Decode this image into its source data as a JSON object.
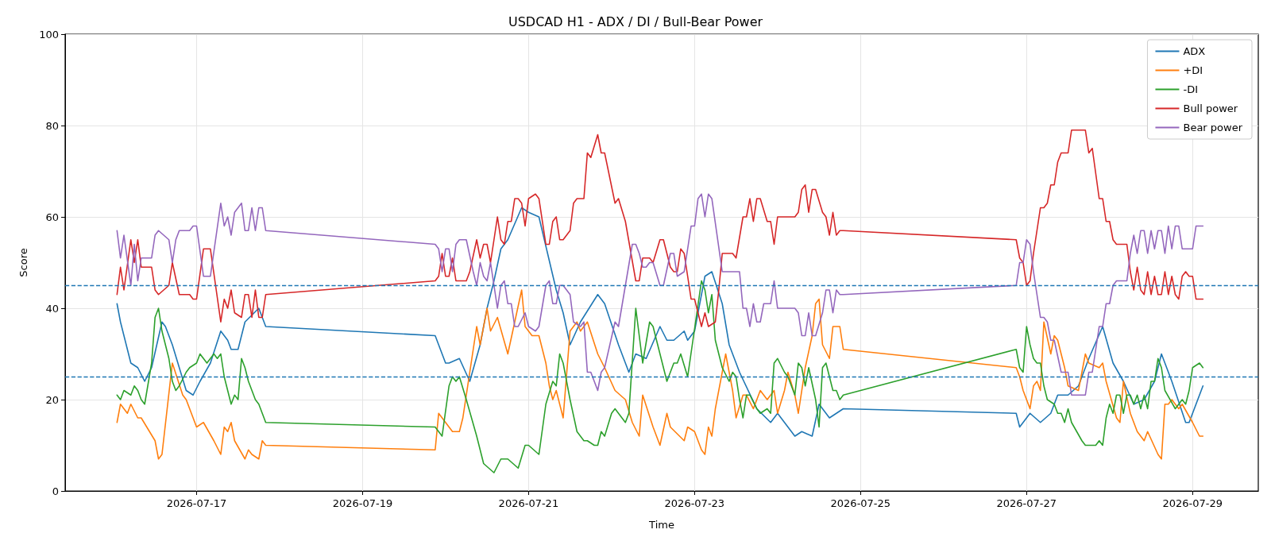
{
  "chart_data": {
    "type": "line",
    "title": "USDCAD H1 - ADX / DI / Bull-Bear Power",
    "xlabel": "Time",
    "ylabel": "Score",
    "xlim": [
      "2026-07-15T10:00",
      "2026-07-29T19:00"
    ],
    "xticks": [
      "2026-07-17",
      "2026-07-19",
      "2026-07-21",
      "2026-07-23",
      "2026-07-25",
      "2026-07-27",
      "2026-07-29"
    ],
    "ylim": [
      0,
      100
    ],
    "yticks": [
      0,
      20,
      40,
      60,
      80,
      100
    ],
    "grid": true,
    "legend": "top right",
    "marker": "none",
    "line_style": "solid",
    "ref_lines": [
      {
        "axis": "y",
        "value": 45,
        "color": "#1f77b4",
        "line_style": "dashed"
      },
      {
        "axis": "y",
        "value": 25,
        "color": "#1f77b4",
        "line_style": "dashed"
      }
    ],
    "series": [
      {
        "name": "ADX",
        "color": "#1f77b4",
        "x": [
          "2026-07-16T01:00",
          "2026-07-16T02:00",
          "2026-07-16T05:00",
          "2026-07-16T07:00",
          "2026-07-16T09:00",
          "2026-07-16T11:00",
          "2026-07-16T14:00",
          "2026-07-16T15:00",
          "2026-07-16T17:00",
          "2026-07-16T21:00",
          "2026-07-16T23:00",
          "2026-07-17T01:00",
          "2026-07-17T04:00",
          "2026-07-17T07:00",
          "2026-07-17T09:00",
          "2026-07-17T10:00",
          "2026-07-17T12:00",
          "2026-07-17T14:00",
          "2026-07-17T18:00",
          "2026-07-17T20:00",
          "2026-07-19T21:00",
          "2026-07-20T00:00",
          "2026-07-20T01:00",
          "2026-07-20T04:00",
          "2026-07-20T07:00",
          "2026-07-20T10:00",
          "2026-07-20T12:00",
          "2026-07-20T14:00",
          "2026-07-20T16:00",
          "2026-07-20T18:00",
          "2026-07-20T22:00",
          "2026-07-21T00:00",
          "2026-07-21T03:00",
          "2026-07-21T08:00",
          "2026-07-21T10:00",
          "2026-07-21T12:00",
          "2026-07-21T15:00",
          "2026-07-21T20:00",
          "2026-07-21T22:00",
          "2026-07-22T02:00",
          "2026-07-22T05:00",
          "2026-07-22T07:00",
          "2026-07-22T10:00",
          "2026-07-22T14:00",
          "2026-07-22T16:00",
          "2026-07-22T18:00",
          "2026-07-22T21:00",
          "2026-07-22T22:00",
          "2026-07-23T00:00",
          "2026-07-23T03:00",
          "2026-07-23T05:00",
          "2026-07-23T08:00",
          "2026-07-23T10:00",
          "2026-07-23T13:00",
          "2026-07-23T18:00",
          "2026-07-23T22:00",
          "2026-07-24T00:00",
          "2026-07-24T05:00",
          "2026-07-24T07:00",
          "2026-07-24T10:00",
          "2026-07-24T12:00",
          "2026-07-24T15:00",
          "2026-07-24T19:00",
          "2026-07-26T21:00",
          "2026-07-26T22:00",
          "2026-07-27T01:00",
          "2026-07-27T04:00",
          "2026-07-27T07:00",
          "2026-07-27T09:00",
          "2026-07-27T12:00",
          "2026-07-27T15:00",
          "2026-07-27T18:00",
          "2026-07-27T22:00",
          "2026-07-28T01:00",
          "2026-07-28T04:00",
          "2026-07-28T07:00",
          "2026-07-28T10:00",
          "2026-07-28T13:00",
          "2026-07-28T15:00",
          "2026-07-28T18:00",
          "2026-07-28T22:00",
          "2026-07-28T23:00",
          "2026-07-29T03:00"
        ],
        "values": [
          41,
          37,
          28,
          27,
          24,
          27,
          37,
          36,
          32,
          22,
          21,
          24,
          28,
          35,
          33,
          31,
          31,
          37,
          40,
          36,
          34,
          28,
          28,
          29,
          24,
          32,
          40,
          46,
          53,
          55,
          62,
          61,
          60,
          44,
          39,
          32,
          37,
          43,
          41,
          32,
          26,
          30,
          29,
          36,
          33,
          33,
          35,
          33,
          35,
          47,
          48,
          41,
          32,
          26,
          18,
          15,
          17,
          12,
          13,
          12,
          19,
          16,
          18,
          17,
          14,
          17,
          15,
          17,
          21,
          21,
          23,
          29,
          36,
          28,
          24,
          19,
          20,
          24,
          30,
          24,
          15,
          15,
          23
        ]
      },
      {
        "name": "+DI",
        "color": "#ff7f0e",
        "x": [
          "2026-07-16T01:00",
          "2026-07-16T02:00",
          "2026-07-16T04:00",
          "2026-07-16T05:00",
          "2026-07-16T07:00",
          "2026-07-16T08:00",
          "2026-07-16T12:00",
          "2026-07-16T13:00",
          "2026-07-16T14:00",
          "2026-07-16T17:00",
          "2026-07-16T20:00",
          "2026-07-16T21:00",
          "2026-07-17T00:00",
          "2026-07-17T02:00",
          "2026-07-17T05:00",
          "2026-07-17T07:00",
          "2026-07-17T08:00",
          "2026-07-17T09:00",
          "2026-07-17T10:00",
          "2026-07-17T11:00",
          "2026-07-17T14:00",
          "2026-07-17T15:00",
          "2026-07-17T16:00",
          "2026-07-17T18:00",
          "2026-07-17T19:00",
          "2026-07-17T20:00",
          "2026-07-19T21:00",
          "2026-07-19T22:00",
          "2026-07-19T23:00",
          "2026-07-20T02:00",
          "2026-07-20T04:00",
          "2026-07-20T05:00",
          "2026-07-20T09:00",
          "2026-07-20T10:00",
          "2026-07-20T12:00",
          "2026-07-20T13:00",
          "2026-07-20T15:00",
          "2026-07-20T18:00",
          "2026-07-20T20:00",
          "2026-07-20T22:00",
          "2026-07-20T23:00",
          "2026-07-21T01:00",
          "2026-07-21T03:00",
          "2026-07-21T05:00",
          "2026-07-21T06:00",
          "2026-07-21T07:00",
          "2026-07-21T08:00",
          "2026-07-21T10:00",
          "2026-07-21T12:00",
          "2026-07-21T14:00",
          "2026-07-21T15:00",
          "2026-07-21T17:00",
          "2026-07-21T20:00",
          "2026-07-21T22:00",
          "2026-07-22T01:00",
          "2026-07-22T04:00",
          "2026-07-22T06:00",
          "2026-07-22T08:00",
          "2026-07-22T09:00",
          "2026-07-22T12:00",
          "2026-07-22T14:00",
          "2026-07-22T16:00",
          "2026-07-22T17:00",
          "2026-07-22T21:00",
          "2026-07-22T22:00",
          "2026-07-23T00:00",
          "2026-07-23T02:00",
          "2026-07-23T03:00",
          "2026-07-23T04:00",
          "2026-07-23T05:00",
          "2026-07-23T06:00",
          "2026-07-23T09:00",
          "2026-07-23T11:00",
          "2026-07-23T12:00",
          "2026-07-23T14:00",
          "2026-07-23T15:00",
          "2026-07-23T17:00",
          "2026-07-23T19:00",
          "2026-07-23T21:00",
          "2026-07-23T23:00",
          "2026-07-24T00:00",
          "2026-07-24T02:00",
          "2026-07-24T03:00",
          "2026-07-24T05:00",
          "2026-07-24T06:00",
          "2026-07-24T08:00",
          "2026-07-24T10:00",
          "2026-07-24T11:00",
          "2026-07-24T12:00",
          "2026-07-24T13:00",
          "2026-07-24T15:00",
          "2026-07-24T16:00",
          "2026-07-24T18:00",
          "2026-07-24T19:00",
          "2026-07-26T21:00",
          "2026-07-26T22:00",
          "2026-07-26T23:00",
          "2026-07-27T01:00",
          "2026-07-27T02:00",
          "2026-07-27T03:00",
          "2026-07-27T04:00",
          "2026-07-27T05:00",
          "2026-07-27T07:00",
          "2026-07-27T08:00",
          "2026-07-27T09:00",
          "2026-07-27T10:00",
          "2026-07-27T11:00",
          "2026-07-27T12:00",
          "2026-07-27T15:00",
          "2026-07-27T17:00",
          "2026-07-27T18:00",
          "2026-07-27T21:00",
          "2026-07-27T22:00",
          "2026-07-27T23:00",
          "2026-07-28T02:00",
          "2026-07-28T03:00",
          "2026-07-28T04:00",
          "2026-07-28T06:00",
          "2026-07-28T08:00",
          "2026-07-28T10:00",
          "2026-07-28T11:00",
          "2026-07-28T14:00",
          "2026-07-28T15:00",
          "2026-07-28T16:00",
          "2026-07-28T17:00",
          "2026-07-28T18:00",
          "2026-07-28T20:00",
          "2026-07-28T21:00",
          "2026-07-29T00:00",
          "2026-07-29T02:00",
          "2026-07-29T03:00"
        ],
        "values": [
          15,
          19,
          17,
          19,
          16,
          16,
          11,
          7,
          8,
          28,
          21,
          20,
          14,
          15,
          11,
          8,
          14,
          13,
          15,
          11,
          7,
          9,
          8,
          7,
          11,
          10,
          9,
          17,
          16,
          13,
          13,
          16,
          36,
          32,
          40,
          35,
          38,
          30,
          37,
          44,
          36,
          34,
          34,
          28,
          23,
          20,
          22,
          16,
          35,
          37,
          35,
          37,
          30,
          27,
          22,
          20,
          15,
          12,
          21,
          14,
          10,
          17,
          14,
          11,
          14,
          13,
          9,
          8,
          14,
          12,
          18,
          30,
          22,
          16,
          21,
          21,
          18,
          22,
          20,
          22,
          17,
          22,
          26,
          21,
          17,
          27,
          34,
          41,
          42,
          32,
          29,
          36,
          36,
          31,
          27,
          25,
          22,
          18,
          23,
          24,
          22,
          37,
          30,
          34,
          33,
          30,
          27,
          23,
          22,
          30,
          28,
          27,
          28,
          24,
          16,
          15,
          24,
          17,
          13,
          11,
          13,
          8,
          7,
          19,
          19,
          20,
          18,
          19,
          15,
          12,
          12
        ]
      },
      {
        "name": "-DI",
        "color": "#2ca02c",
        "x": [
          "2026-07-16T01:00",
          "2026-07-16T02:00",
          "2026-07-16T03:00",
          "2026-07-16T05:00",
          "2026-07-16T06:00",
          "2026-07-16T07:00",
          "2026-07-16T08:00",
          "2026-07-16T09:00",
          "2026-07-16T11:00",
          "2026-07-16T12:00",
          "2026-07-16T13:00",
          "2026-07-16T14:00",
          "2026-07-16T16:00",
          "2026-07-16T17:00",
          "2026-07-16T18:00",
          "2026-07-16T19:00",
          "2026-07-16T21:00",
          "2026-07-16T22:00",
          "2026-07-17T00:00",
          "2026-07-17T01:00",
          "2026-07-17T03:00",
          "2026-07-17T05:00",
          "2026-07-17T06:00",
          "2026-07-17T07:00",
          "2026-07-17T08:00",
          "2026-07-17T10:00",
          "2026-07-17T11:00",
          "2026-07-17T12:00",
          "2026-07-17T13:00",
          "2026-07-17T14:00",
          "2026-07-17T15:00",
          "2026-07-17T17:00",
          "2026-07-17T18:00",
          "2026-07-17T19:00",
          "2026-07-17T20:00",
          "2026-07-19T21:00",
          "2026-07-19T23:00",
          "2026-07-20T01:00",
          "2026-07-20T02:00",
          "2026-07-20T03:00",
          "2026-07-20T04:00",
          "2026-07-20T06:00",
          "2026-07-20T09:00",
          "2026-07-20T11:00",
          "2026-07-20T14:00",
          "2026-07-20T16:00",
          "2026-07-20T18:00",
          "2026-07-20T21:00",
          "2026-07-20T23:00",
          "2026-07-21T00:00",
          "2026-07-21T03:00",
          "2026-07-21T05:00",
          "2026-07-21T07:00",
          "2026-07-21T08:00",
          "2026-07-21T09:00",
          "2026-07-21T10:00",
          "2026-07-21T12:00",
          "2026-07-21T14:00",
          "2026-07-21T16:00",
          "2026-07-21T17:00",
          "2026-07-21T19:00",
          "2026-07-21T20:00",
          "2026-07-21T21:00",
          "2026-07-21T22:00",
          "2026-07-22T00:00",
          "2026-07-22T01:00",
          "2026-07-22T04:00",
          "2026-07-22T05:00",
          "2026-07-22T07:00",
          "2026-07-22T09:00",
          "2026-07-22T11:00",
          "2026-07-22T12:00",
          "2026-07-22T14:00",
          "2026-07-22T16:00",
          "2026-07-22T18:00",
          "2026-07-22T19:00",
          "2026-07-22T20:00",
          "2026-07-22T22:00",
          "2026-07-23T02:00",
          "2026-07-23T03:00",
          "2026-07-23T04:00",
          "2026-07-23T05:00",
          "2026-07-23T06:00",
          "2026-07-23T08:00",
          "2026-07-23T10:00",
          "2026-07-23T11:00",
          "2026-07-23T12:00",
          "2026-07-23T13:00",
          "2026-07-23T14:00",
          "2026-07-23T15:00",
          "2026-07-23T16:00",
          "2026-07-23T18:00",
          "2026-07-23T19:00",
          "2026-07-23T21:00",
          "2026-07-23T22:00",
          "2026-07-23T23:00",
          "2026-07-24T00:00",
          "2026-07-24T02:00",
          "2026-07-24T03:00",
          "2026-07-24T05:00",
          "2026-07-24T06:00",
          "2026-07-24T07:00",
          "2026-07-24T08:00",
          "2026-07-24T09:00",
          "2026-07-24T11:00",
          "2026-07-24T12:00",
          "2026-07-24T13:00",
          "2026-07-24T14:00",
          "2026-07-24T16:00",
          "2026-07-24T17:00",
          "2026-07-24T18:00",
          "2026-07-24T19:00",
          "2026-07-26T21:00",
          "2026-07-26T22:00",
          "2026-07-26T23:00",
          "2026-07-27T00:00",
          "2026-07-27T01:00",
          "2026-07-27T02:00",
          "2026-07-27T03:00",
          "2026-07-27T04:00",
          "2026-07-27T05:00",
          "2026-07-27T06:00",
          "2026-07-27T08:00",
          "2026-07-27T09:00",
          "2026-07-27T10:00",
          "2026-07-27T11:00",
          "2026-07-27T12:00",
          "2026-07-27T13:00",
          "2026-07-27T16:00",
          "2026-07-27T17:00",
          "2026-07-27T18:00",
          "2026-07-27T20:00",
          "2026-07-27T21:00",
          "2026-07-27T22:00",
          "2026-07-27T23:00",
          "2026-07-28T00:00",
          "2026-07-28T01:00",
          "2026-07-28T02:00",
          "2026-07-28T03:00",
          "2026-07-28T04:00",
          "2026-07-28T05:00",
          "2026-07-28T06:00",
          "2026-07-28T07:00",
          "2026-07-28T08:00",
          "2026-07-28T09:00",
          "2026-07-28T10:00",
          "2026-07-28T11:00",
          "2026-07-28T12:00",
          "2026-07-28T13:00",
          "2026-07-28T14:00",
          "2026-07-28T15:00",
          "2026-07-28T16:00",
          "2026-07-28T19:00",
          "2026-07-28T21:00",
          "2026-07-28T22:00",
          "2026-07-28T23:00",
          "2026-07-29T00:00",
          "2026-07-29T02:00",
          "2026-07-29T03:00"
        ],
        "values": [
          21,
          20,
          22,
          21,
          23,
          22,
          20,
          19,
          28,
          38,
          40,
          35,
          29,
          24,
          22,
          23,
          26,
          27,
          28,
          30,
          28,
          30,
          29,
          30,
          25,
          19,
          21,
          20,
          29,
          27,
          24,
          20,
          19,
          17,
          15,
          14,
          12,
          23,
          25,
          24,
          25,
          20,
          12,
          6,
          4,
          7,
          7,
          5,
          10,
          10,
          8,
          19,
          24,
          23,
          30,
          28,
          20,
          13,
          11,
          11,
          10,
          10,
          13,
          12,
          17,
          18,
          15,
          17,
          40,
          28,
          37,
          36,
          30,
          24,
          28,
          28,
          30,
          25,
          46,
          44,
          39,
          43,
          33,
          27,
          24,
          26,
          25,
          20,
          16,
          21,
          21,
          18,
          17,
          18,
          17,
          28,
          29,
          26,
          25,
          21,
          28,
          27,
          23,
          27,
          20,
          14,
          27,
          28,
          22,
          22,
          20,
          21,
          31,
          27,
          26,
          36,
          32,
          29,
          28,
          28,
          23,
          20,
          19,
          17,
          17,
          15,
          18,
          15,
          11,
          10,
          10,
          10,
          11,
          10,
          16,
          19,
          17,
          21,
          21,
          17,
          21,
          21,
          19,
          21,
          18,
          21,
          18,
          24,
          24,
          29,
          27,
          22,
          18,
          20,
          19,
          22,
          27,
          28,
          27
        ]
      },
      {
        "name": "Bull power",
        "color": "#d62728",
        "x": [
          "2026-07-16T01:00",
          "2026-07-16T02:00",
          "2026-07-16T03:00",
          "2026-07-16T05:00",
          "2026-07-16T06:00",
          "2026-07-16T07:00",
          "2026-07-16T08:00",
          "2026-07-16T11:00",
          "2026-07-16T12:00",
          "2026-07-16T13:00",
          "2026-07-16T16:00",
          "2026-07-16T17:00",
          "2026-07-16T19:00",
          "2026-07-16T22:00",
          "2026-07-16T23:00",
          "2026-07-17T00:00",
          "2026-07-17T02:00",
          "2026-07-17T04:00",
          "2026-07-17T07:00",
          "2026-07-17T08:00",
          "2026-07-17T09:00",
          "2026-07-17T10:00",
          "2026-07-17T11:00",
          "2026-07-17T13:00",
          "2026-07-17T14:00",
          "2026-07-17T15:00",
          "2026-07-17T16:00",
          "2026-07-17T17:00",
          "2026-07-17T18:00",
          "2026-07-17T19:00",
          "2026-07-17T20:00",
          "2026-07-19T21:00",
          "2026-07-19T22:00",
          "2026-07-19T23:00",
          "2026-07-20T00:00",
          "2026-07-20T01:00",
          "2026-07-20T02:00",
          "2026-07-20T03:00",
          "2026-07-20T04:00",
          "2026-07-20T06:00",
          "2026-07-20T07:00",
          "2026-07-20T09:00",
          "2026-07-20T10:00",
          "2026-07-20T11:00",
          "2026-07-20T12:00",
          "2026-07-20T13:00",
          "2026-07-20T15:00",
          "2026-07-20T16:00",
          "2026-07-20T17:00",
          "2026-07-20T18:00",
          "2026-07-20T19:00",
          "2026-07-20T20:00",
          "2026-07-20T21:00",
          "2026-07-20T22:00",
          "2026-07-20T23:00",
          "2026-07-21T00:00",
          "2026-07-21T02:00",
          "2026-07-21T03:00",
          "2026-07-21T05:00",
          "2026-07-21T06:00",
          "2026-07-21T07:00",
          "2026-07-21T08:00",
          "2026-07-21T09:00",
          "2026-07-21T10:00",
          "2026-07-21T12:00",
          "2026-07-21T13:00",
          "2026-07-21T14:00",
          "2026-07-21T16:00",
          "2026-07-21T17:00",
          "2026-07-21T18:00",
          "2026-07-21T20:00",
          "2026-07-21T21:00",
          "2026-07-21T22:00",
          "2026-07-22T01:00",
          "2026-07-22T02:00",
          "2026-07-22T04:00",
          "2026-07-22T07:00",
          "2026-07-22T08:00",
          "2026-07-22T09:00",
          "2026-07-22T11:00",
          "2026-07-22T12:00",
          "2026-07-22T14:00",
          "2026-07-22T15:00",
          "2026-07-22T17:00",
          "2026-07-22T18:00",
          "2026-07-22T19:00",
          "2026-07-22T20:00",
          "2026-07-22T21:00",
          "2026-07-22T22:00",
          "2026-07-22T23:00",
          "2026-07-23T00:00",
          "2026-07-23T02:00",
          "2026-07-23T03:00",
          "2026-07-23T04:00",
          "2026-07-23T06:00",
          "2026-07-23T07:00",
          "2026-07-23T08:00",
          "2026-07-23T11:00",
          "2026-07-23T12:00",
          "2026-07-23T14:00",
          "2026-07-23T15:00",
          "2026-07-23T16:00",
          "2026-07-23T17:00",
          "2026-07-23T18:00",
          "2026-07-23T19:00",
          "2026-07-23T21:00",
          "2026-07-23T22:00",
          "2026-07-23T23:00",
          "2026-07-24T00:00",
          "2026-07-24T01:00",
          "2026-07-24T05:00",
          "2026-07-24T06:00",
          "2026-07-24T07:00",
          "2026-07-24T08:00",
          "2026-07-24T09:00",
          "2026-07-24T10:00",
          "2026-07-24T11:00",
          "2026-07-24T13:00",
          "2026-07-24T14:00",
          "2026-07-24T15:00",
          "2026-07-24T16:00",
          "2026-07-24T17:00",
          "2026-07-24T18:00",
          "2026-07-24T19:00",
          "2026-07-26T21:00",
          "2026-07-26T22:00",
          "2026-07-26T23:00",
          "2026-07-27T00:00",
          "2026-07-27T01:00",
          "2026-07-27T02:00",
          "2026-07-27T04:00",
          "2026-07-27T05:00",
          "2026-07-27T06:00",
          "2026-07-27T07:00",
          "2026-07-27T08:00",
          "2026-07-27T09:00",
          "2026-07-27T10:00",
          "2026-07-27T12:00",
          "2026-07-27T13:00",
          "2026-07-27T16:00",
          "2026-07-27T17:00",
          "2026-07-27T18:00",
          "2026-07-27T19:00",
          "2026-07-27T21:00",
          "2026-07-27T22:00",
          "2026-07-27T23:00",
          "2026-07-28T00:00",
          "2026-07-28T01:00",
          "2026-07-28T02:00",
          "2026-07-28T05:00",
          "2026-07-28T06:00",
          "2026-07-28T07:00",
          "2026-07-28T08:00",
          "2026-07-28T09:00",
          "2026-07-28T10:00",
          "2026-07-28T11:00",
          "2026-07-28T12:00",
          "2026-07-28T13:00",
          "2026-07-28T14:00",
          "2026-07-28T15:00",
          "2026-07-28T16:00",
          "2026-07-28T17:00",
          "2026-07-28T18:00",
          "2026-07-28T19:00",
          "2026-07-28T20:00",
          "2026-07-28T21:00",
          "2026-07-28T22:00",
          "2026-07-28T23:00",
          "2026-07-29T00:00",
          "2026-07-29T01:00",
          "2026-07-29T03:00"
        ],
        "values": [
          43,
          49,
          44,
          55,
          50,
          55,
          49,
          49,
          44,
          43,
          45,
          50,
          43,
          43,
          42,
          42,
          53,
          53,
          37,
          42,
          40,
          44,
          39,
          38,
          43,
          43,
          38,
          44,
          38,
          38,
          43,
          46,
          47,
          52,
          47,
          47,
          51,
          46,
          46,
          46,
          48,
          55,
          51,
          54,
          54,
          50,
          60,
          55,
          54,
          59,
          59,
          64,
          64,
          63,
          58,
          64,
          65,
          64,
          54,
          54,
          59,
          60,
          55,
          55,
          57,
          63,
          64,
          64,
          74,
          73,
          78,
          74,
          74,
          63,
          64,
          59,
          46,
          46,
          51,
          51,
          50,
          55,
          55,
          49,
          48,
          48,
          53,
          52,
          47,
          42,
          42,
          36,
          39,
          36,
          37,
          44,
          52,
          52,
          51,
          60,
          60,
          64,
          59,
          64,
          64,
          59,
          59,
          54,
          60,
          60,
          60,
          61,
          66,
          67,
          61,
          66,
          66,
          61,
          60,
          56,
          61,
          56,
          57,
          57,
          55,
          51,
          50,
          45,
          46,
          52,
          62,
          62,
          63,
          67,
          67,
          72,
          74,
          74,
          79,
          79,
          79,
          74,
          75,
          64,
          64,
          59,
          59,
          55,
          54,
          54,
          48,
          44,
          49,
          44,
          43,
          48,
          43,
          47,
          43,
          43,
          48,
          43,
          47,
          43,
          42,
          47,
          48,
          47,
          47,
          42,
          42
        ]
      },
      {
        "name": "Bear power",
        "color": "#9467bd",
        "x": [
          "2026-07-16T01:00",
          "2026-07-16T02:00",
          "2026-07-16T03:00",
          "2026-07-16T05:00",
          "2026-07-16T06:00",
          "2026-07-16T07:00",
          "2026-07-16T08:00",
          "2026-07-16T11:00",
          "2026-07-16T12:00",
          "2026-07-16T13:00",
          "2026-07-16T16:00",
          "2026-07-16T17:00",
          "2026-07-16T18:00",
          "2026-07-16T19:00",
          "2026-07-16T22:00",
          "2026-07-16T23:00",
          "2026-07-17T00:00",
          "2026-07-17T02:00",
          "2026-07-17T04:00",
          "2026-07-17T07:00",
          "2026-07-17T08:00",
          "2026-07-17T09:00",
          "2026-07-17T10:00",
          "2026-07-17T11:00",
          "2026-07-17T13:00",
          "2026-07-17T14:00",
          "2026-07-17T15:00",
          "2026-07-17T16:00",
          "2026-07-17T17:00",
          "2026-07-17T18:00",
          "2026-07-17T19:00",
          "2026-07-17T20:00",
          "2026-07-19T21:00",
          "2026-07-19T22:00",
          "2026-07-19T23:00",
          "2026-07-20T00:00",
          "2026-07-20T01:00",
          "2026-07-20T02:00",
          "2026-07-20T03:00",
          "2026-07-20T04:00",
          "2026-07-20T06:00",
          "2026-07-20T08:00",
          "2026-07-20T09:00",
          "2026-07-20T10:00",
          "2026-07-20T11:00",
          "2026-07-20T12:00",
          "2026-07-20T13:00",
          "2026-07-20T15:00",
          "2026-07-20T16:00",
          "2026-07-20T17:00",
          "2026-07-20T18:00",
          "2026-07-20T19:00",
          "2026-07-20T20:00",
          "2026-07-20T21:00",
          "2026-07-20T23:00",
          "2026-07-21T00:00",
          "2026-07-21T02:00",
          "2026-07-21T03:00",
          "2026-07-21T05:00",
          "2026-07-21T06:00",
          "2026-07-21T07:00",
          "2026-07-21T08:00",
          "2026-07-21T09:00",
          "2026-07-21T10:00",
          "2026-07-21T12:00",
          "2026-07-21T13:00",
          "2026-07-21T15:00",
          "2026-07-21T16:00",
          "2026-07-21T17:00",
          "2026-07-21T18:00",
          "2026-07-21T20:00",
          "2026-07-21T21:00",
          "2026-07-21T22:00",
          "2026-07-22T01:00",
          "2026-07-22T02:00",
          "2026-07-22T06:00",
          "2026-07-22T07:00",
          "2026-07-22T08:00",
          "2026-07-22T09:00",
          "2026-07-22T10:00",
          "2026-07-22T11:00",
          "2026-07-22T12:00",
          "2026-07-22T14:00",
          "2026-07-22T15:00",
          "2026-07-22T17:00",
          "2026-07-22T18:00",
          "2026-07-22T19:00",
          "2026-07-22T21:00",
          "2026-07-22T23:00",
          "2026-07-23T00:00",
          "2026-07-23T01:00",
          "2026-07-23T02:00",
          "2026-07-23T03:00",
          "2026-07-23T04:00",
          "2026-07-23T05:00",
          "2026-07-23T08:00",
          "2026-07-23T12:00",
          "2026-07-23T13:00",
          "2026-07-23T14:00",
          "2026-07-23T15:00",
          "2026-07-23T16:00",
          "2026-07-23T17:00",
          "2026-07-23T18:00",
          "2026-07-23T19:00",
          "2026-07-23T20:00",
          "2026-07-23T22:00",
          "2026-07-23T23:00",
          "2026-07-24T00:00",
          "2026-07-24T02:00",
          "2026-07-24T05:00",
          "2026-07-24T06:00",
          "2026-07-24T07:00",
          "2026-07-24T08:00",
          "2026-07-24T09:00",
          "2026-07-24T10:00",
          "2026-07-24T11:00",
          "2026-07-24T13:00",
          "2026-07-24T14:00",
          "2026-07-24T15:00",
          "2026-07-24T16:00",
          "2026-07-24T17:00",
          "2026-07-24T18:00",
          "2026-07-24T19:00",
          "2026-07-26T21:00",
          "2026-07-26T22:00",
          "2026-07-26T23:00",
          "2026-07-27T00:00",
          "2026-07-27T01:00",
          "2026-07-27T02:00",
          "2026-07-27T04:00",
          "2026-07-27T05:00",
          "2026-07-27T06:00",
          "2026-07-27T07:00",
          "2026-07-27T08:00",
          "2026-07-27T10:00",
          "2026-07-27T12:00",
          "2026-07-27T13:00",
          "2026-07-27T16:00",
          "2026-07-27T17:00",
          "2026-07-27T18:00",
          "2026-07-27T19:00",
          "2026-07-27T21:00",
          "2026-07-27T22:00",
          "2026-07-27T23:00",
          "2026-07-28T00:00",
          "2026-07-28T01:00",
          "2026-07-28T02:00",
          "2026-07-28T05:00",
          "2026-07-28T06:00",
          "2026-07-28T07:00",
          "2026-07-28T08:00",
          "2026-07-28T09:00",
          "2026-07-28T10:00",
          "2026-07-28T11:00",
          "2026-07-28T12:00",
          "2026-07-28T13:00",
          "2026-07-28T14:00",
          "2026-07-28T15:00",
          "2026-07-28T16:00",
          "2026-07-28T17:00",
          "2026-07-28T18:00",
          "2026-07-28T19:00",
          "2026-07-28T20:00",
          "2026-07-28T21:00",
          "2026-07-28T22:00",
          "2026-07-28T23:00",
          "2026-07-29T00:00",
          "2026-07-29T01:00",
          "2026-07-29T03:00"
        ],
        "values": [
          57,
          51,
          56,
          45,
          54,
          46,
          51,
          51,
          56,
          57,
          55,
          50,
          55,
          57,
          57,
          58,
          58,
          47,
          47,
          63,
          58,
          60,
          56,
          61,
          63,
          57,
          57,
          62,
          57,
          62,
          62,
          57,
          54,
          53,
          48,
          53,
          53,
          48,
          54,
          55,
          55,
          48,
          45,
          50,
          47,
          46,
          50,
          40,
          45,
          46,
          41,
          41,
          36,
          36,
          39,
          36,
          35,
          36,
          45,
          46,
          41,
          41,
          45,
          45,
          43,
          37,
          36,
          37,
          26,
          26,
          22,
          26,
          27,
          37,
          36,
          54,
          54,
          52,
          49,
          49,
          50,
          50,
          45,
          45,
          52,
          52,
          47,
          48,
          58,
          58,
          64,
          65,
          60,
          65,
          64,
          48,
          48,
          48,
          40,
          40,
          36,
          41,
          37,
          37,
          41,
          41,
          46,
          40,
          40,
          40,
          39,
          34,
          34,
          39,
          34,
          34,
          39,
          44,
          44,
          39,
          44,
          43,
          43,
          45,
          50,
          50,
          55,
          54,
          48,
          38,
          38,
          37,
          33,
          33,
          26,
          26,
          21,
          21,
          21,
          26,
          26,
          36,
          36,
          41,
          41,
          45,
          46,
          46,
          52,
          56,
          52,
          57,
          57,
          52,
          57,
          53,
          57,
          57,
          52,
          58,
          53,
          58,
          58,
          53,
          53,
          53,
          53,
          58,
          58
        ]
      }
    ]
  }
}
